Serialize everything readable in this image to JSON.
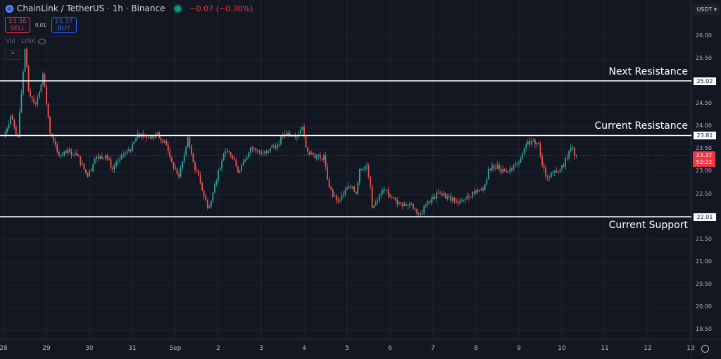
{
  "header": {
    "symbol": "ChainLink / TetherUS · 1h · Binance",
    "change": "−0.07 (−0.30%)",
    "market_status_color": "#089981"
  },
  "trade": {
    "sell_price": "23.36",
    "sell_label": "SELL",
    "spread": "0.01",
    "buy_price": "23.37",
    "buy_label": "BUY"
  },
  "volume_legend": "Vol · LINK",
  "collapse_icon": "chevron-up-icon",
  "currency": "USDT",
  "levels": [
    {
      "label": "Next Resistance",
      "price": 25.02,
      "price_text": "25.02"
    },
    {
      "label": "Current Resistance",
      "price": 23.81,
      "price_text": "23.81"
    },
    {
      "label": "Current Support",
      "price": 22.01,
      "price_text": "22.01"
    }
  ],
  "current_price": {
    "price": 23.37,
    "price_text": "23.37",
    "countdown": "52:22"
  },
  "colors": {
    "up": "#26a69a",
    "down": "#ef5350",
    "background": "#131722",
    "grid": "#1f2330",
    "level_line": "#ffffff"
  },
  "chart_data": {
    "type": "candlestick",
    "interval": "1h",
    "ylim": [
      19.25,
      26.3
    ],
    "y_ticks": [
      "26.00",
      "25.50",
      "24.50",
      "24.00",
      "23.50",
      "23.00",
      "22.50",
      "21.50",
      "21.00",
      "20.50",
      "20.00",
      "19.50"
    ],
    "x_ticks": [
      "28",
      "29",
      "30",
      "31",
      "Sep",
      "2",
      "3",
      "4",
      "5",
      "6",
      "7",
      "8",
      "9",
      "10",
      "11",
      "12",
      "13"
    ],
    "grid": true,
    "closes": [
      [
        "08-28 00:00",
        23.77
      ],
      [
        "08-28 04:00",
        24.24
      ],
      [
        "08-28 08:00",
        23.77
      ],
      [
        "08-28 12:00",
        25.72
      ],
      [
        "08-28 14:00",
        24.8
      ],
      [
        "08-28 18:00",
        24.5
      ],
      [
        "08-28 22:00",
        25.17
      ],
      [
        "08-29 00:00",
        24.5
      ],
      [
        "08-29 02:00",
        23.85
      ],
      [
        "08-29 06:00",
        23.45
      ],
      [
        "08-29 09:00",
        23.38
      ],
      [
        "08-29 13:00",
        23.45
      ],
      [
        "08-29 17:00",
        23.38
      ],
      [
        "08-29 23:00",
        22.9
      ],
      [
        "08-30 03:00",
        23.29
      ],
      [
        "08-30 09:00",
        23.38
      ],
      [
        "08-30 13:00",
        23.07
      ],
      [
        "08-30 19:00",
        23.38
      ],
      [
        "08-30 23:00",
        23.46
      ],
      [
        "08-31 03:00",
        23.85
      ],
      [
        "08-31 09:00",
        23.77
      ],
      [
        "08-31 13:00",
        23.85
      ],
      [
        "08-31 18:00",
        23.69
      ],
      [
        "08-31 22:00",
        23.22
      ],
      [
        "09-01 02:00",
        22.9
      ],
      [
        "09-01 05:00",
        23.38
      ],
      [
        "09-01 07:00",
        23.77
      ],
      [
        "09-01 10:00",
        23.22
      ],
      [
        "09-01 14:00",
        22.76
      ],
      [
        "09-01 18:00",
        22.21
      ],
      [
        "09-01 20:00",
        22.36
      ],
      [
        "09-02 00:00",
        23.05
      ],
      [
        "09-02 04:00",
        23.46
      ],
      [
        "09-02 08:00",
        23.3
      ],
      [
        "09-02 11:00",
        22.99
      ],
      [
        "09-02 14:00",
        23.22
      ],
      [
        "09-02 18:00",
        23.54
      ],
      [
        "09-02 22:00",
        23.46
      ],
      [
        "09-03 02:00",
        23.46
      ],
      [
        "09-03 05:00",
        23.54
      ],
      [
        "09-03 09:00",
        23.61
      ],
      [
        "09-03 13:00",
        23.85
      ],
      [
        "09-03 19:00",
        23.77
      ],
      [
        "09-03 23:00",
        24.0
      ],
      [
        "09-04 01:00",
        23.54
      ],
      [
        "09-04 05:00",
        23.38
      ],
      [
        "09-04 09:00",
        23.3
      ],
      [
        "09-04 11:00",
        23.38
      ],
      [
        "09-04 13:00",
        22.84
      ],
      [
        "09-04 16:00",
        22.45
      ],
      [
        "09-04 19:00",
        22.37
      ],
      [
        "09-04 23:00",
        22.6
      ],
      [
        "09-05 03:00",
        22.68
      ],
      [
        "09-05 05:00",
        22.52
      ],
      [
        "09-05 07:00",
        23.07
      ],
      [
        "09-05 11:00",
        23.15
      ],
      [
        "09-05 13:00",
        22.68
      ],
      [
        "09-05 14:00",
        22.21
      ],
      [
        "09-05 17:00",
        22.37
      ],
      [
        "09-05 20:00",
        22.6
      ],
      [
        "09-06 00:00",
        22.45
      ],
      [
        "09-06 04:00",
        22.29
      ],
      [
        "09-06 08:00",
        22.29
      ],
      [
        "09-06 12:00",
        22.29
      ],
      [
        "09-06 17:00",
        22.05
      ],
      [
        "09-06 20:00",
        22.29
      ],
      [
        "09-07 00:00",
        22.45
      ],
      [
        "09-07 04:00",
        22.52
      ],
      [
        "09-07 08:00",
        22.45
      ],
      [
        "09-07 12:00",
        22.37
      ],
      [
        "09-07 16:00",
        22.37
      ],
      [
        "09-07 20:00",
        22.45
      ],
      [
        "09-08 00:00",
        22.6
      ],
      [
        "09-08 04:00",
        22.6
      ],
      [
        "09-08 06:00",
        22.84
      ],
      [
        "09-08 07:00",
        23.07
      ],
      [
        "09-08 09:00",
        23.15
      ],
      [
        "09-08 13:00",
        23.07
      ],
      [
        "09-08 17:00",
        23.0
      ],
      [
        "09-08 21:00",
        23.15
      ],
      [
        "09-09 01:00",
        23.3
      ],
      [
        "09-09 04:00",
        23.61
      ],
      [
        "09-09 07:00",
        23.69
      ],
      [
        "09-09 11:00",
        23.61
      ],
      [
        "09-09 13:00",
        23.15
      ],
      [
        "09-09 15:00",
        22.9
      ],
      [
        "09-09 19:00",
        22.99
      ],
      [
        "09-09 23:00",
        23.07
      ],
      [
        "09-10 03:00",
        23.3
      ],
      [
        "09-10 05:00",
        23.54
      ],
      [
        "09-10 08:00",
        23.37
      ]
    ]
  }
}
